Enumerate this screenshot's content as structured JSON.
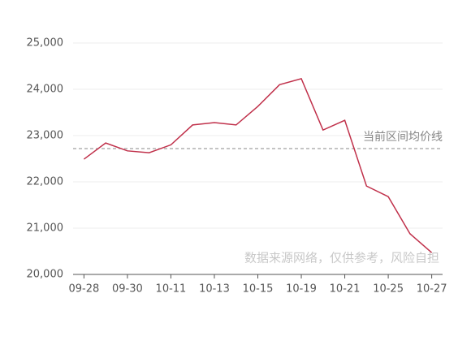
{
  "chart_data": {
    "type": "line",
    "categories": [
      "09-28",
      null,
      "09-30",
      null,
      "10-11",
      null,
      "10-13",
      null,
      "10-15",
      null,
      "10-19",
      null,
      "10-21",
      null,
      "10-25",
      null,
      "10-27"
    ],
    "series": [
      {
        "name": null,
        "color": "#c0304a",
        "values": [
          22490,
          22840,
          22670,
          22630,
          22800,
          23230,
          23280,
          23230,
          23630,
          24100,
          24230,
          23120,
          23330,
          21910,
          21680,
          20880,
          20470
        ]
      }
    ],
    "ylim": [
      20000,
      25000
    ],
    "yticks": [
      {
        "value": 20000,
        "label": "20,000"
      },
      {
        "value": 21000,
        "label": "21,000"
      },
      {
        "value": 22000,
        "label": "22,000"
      },
      {
        "value": 23000,
        "label": "23,000"
      },
      {
        "value": 24000,
        "label": "24,000"
      },
      {
        "value": 25000,
        "label": "25,000"
      }
    ],
    "grid": true,
    "reference_line": {
      "value": 22720,
      "label": "当前区间均价线",
      "color": "#888888"
    },
    "watermark": "数据来源网络，仅供参考，风险自担"
  }
}
